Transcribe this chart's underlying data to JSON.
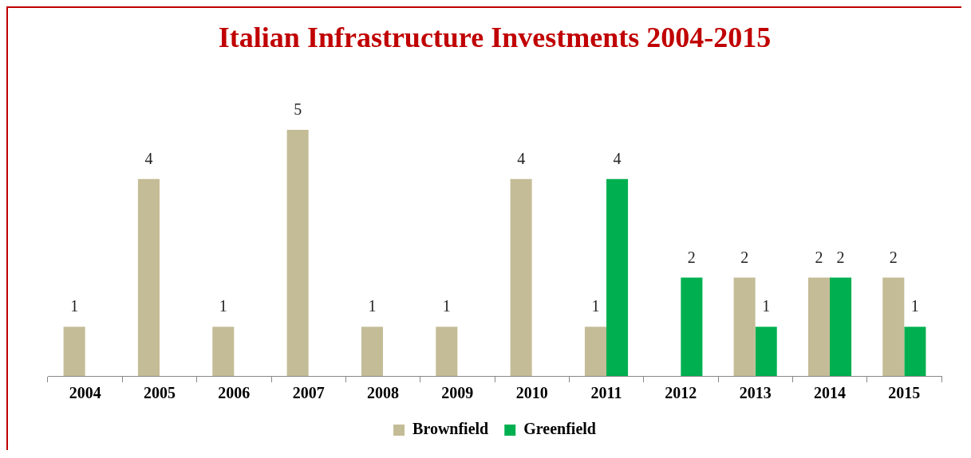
{
  "chart_data": {
    "type": "bar",
    "title": "Italian Infrastructure Investments 2004-2015",
    "categories": [
      "2004",
      "2005",
      "2006",
      "2007",
      "2008",
      "2009",
      "2010",
      "2011",
      "2012",
      "2013",
      "2014",
      "2015"
    ],
    "series": [
      {
        "name": "Brownfield",
        "color": "#c4bc96",
        "values": [
          1,
          4,
          1,
          5,
          1,
          1,
          4,
          1,
          null,
          2,
          2,
          2
        ]
      },
      {
        "name": "Greenfield",
        "color": "#00b050",
        "values": [
          null,
          null,
          null,
          null,
          null,
          null,
          null,
          4,
          2,
          1,
          2,
          1
        ]
      }
    ],
    "data_labels": true,
    "grid": false,
    "legend": "bottom"
  }
}
